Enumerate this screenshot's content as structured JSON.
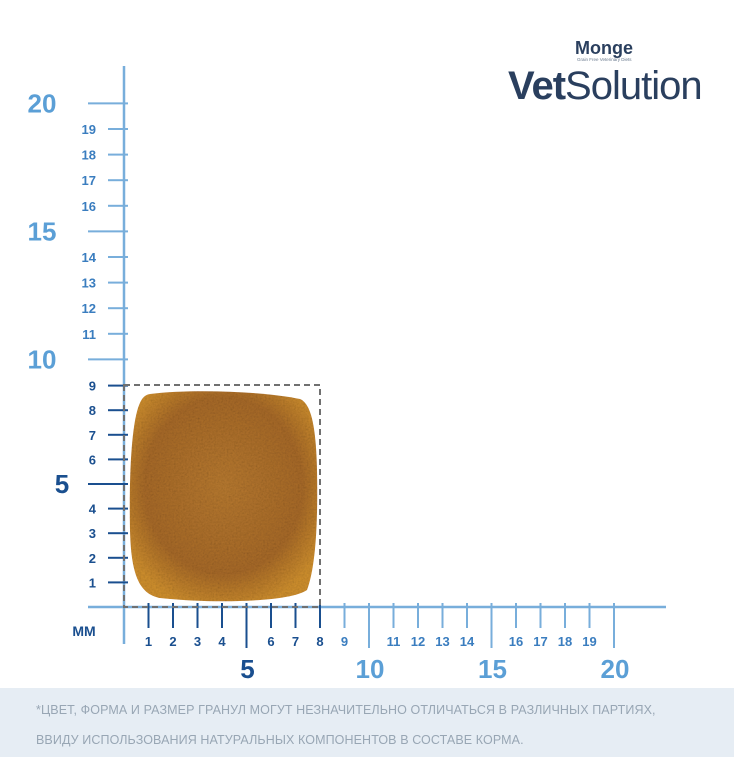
{
  "brand": {
    "monge": "Monge",
    "tagline": "Grain Free Veterinary Diets",
    "vet": "Vet",
    "solution": "Solution"
  },
  "unit_label": "MM",
  "y_axis": {
    "major": [
      "5",
      "10",
      "15",
      "20"
    ],
    "minor": [
      "1",
      "2",
      "3",
      "4",
      "6",
      "7",
      "8",
      "9",
      "11",
      "12",
      "13",
      "14",
      "16",
      "17",
      "18",
      "19"
    ]
  },
  "x_axis": {
    "major": [
      "5",
      "10",
      "15",
      "20"
    ],
    "minor": [
      "1",
      "2",
      "3",
      "4",
      "6",
      "7",
      "8",
      "9",
      "11",
      "12",
      "13",
      "14",
      "16",
      "17",
      "18",
      "19"
    ]
  },
  "kibble": {
    "width_mm": 8,
    "height_mm": 9
  },
  "footnote": {
    "line1": "*ЦВЕТ, ФОРМА И РАЗМЕР ГРАНУЛ МОГУТ НЕЗНАЧИТЕЛЬНО ОТЛИЧАТЬСЯ В РАЗЛИЧНЫХ ПАРТИЯХ,",
    "line2": "ВВИДУ ИСПОЛЬЗОВАНИЯ НАТУРАЛЬНЫХ КОМПОНЕНТОВ В СОСТАВЕ КОРМА."
  },
  "colors": {
    "axis": "#78aedb",
    "axis_dark": "#1a4f8f",
    "major_label": "#5b9fd6",
    "minor_label": "#3a7dbf",
    "kibble": "#b5782e",
    "brand_dark": "#2a3f5e"
  }
}
